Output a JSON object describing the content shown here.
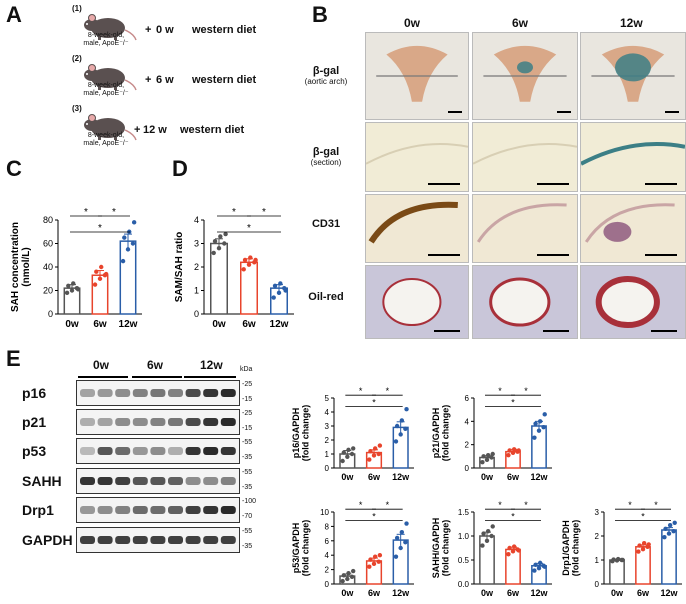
{
  "panels": {
    "A": "A",
    "B": "B",
    "C": "C",
    "D": "D",
    "E": "E"
  },
  "panelA": {
    "groups": [
      {
        "num": "(1)",
        "mouse": [
          "8-week-old,",
          "male, ApoE⁻/⁻"
        ],
        "plus": "+",
        "duration": "0 w",
        "diet": "western diet"
      },
      {
        "num": "(2)",
        "mouse": [
          "8-week-old,",
          "male, ApoE⁻/⁻"
        ],
        "plus": "+",
        "duration": "6 w",
        "diet": "western diet"
      },
      {
        "num": "(3)",
        "mouse": [
          "8-week-old,",
          "male, ApoE⁻/⁻"
        ],
        "plus": "+",
        "duration": "12 w",
        "diet": "western diet"
      }
    ]
  },
  "panelB": {
    "columns": [
      "0w",
      "6w",
      "12w"
    ],
    "rows": [
      {
        "label": "β-gal",
        "sub": "(aortic arch)"
      },
      {
        "label": "β-gal",
        "sub": "(section)"
      },
      {
        "label": "CD31",
        "sub": ""
      },
      {
        "label": "Oil-red",
        "sub": ""
      }
    ],
    "colors": {
      "arch_bg": "#e9e6df",
      "arch_tissue": "#d9a888",
      "stain_blue": "#3c7f86",
      "section_bg": "#f1ecd6",
      "cd31_brown": "#7a4a16",
      "oil_bg": "#c9c6d9",
      "oil_red": "#a8303a"
    }
  },
  "chart_data": [
    {
      "type": "bar",
      "panel": "C",
      "categories": [
        "0w",
        "6w",
        "12w"
      ],
      "values": [
        22,
        33,
        62
      ],
      "errors": [
        3,
        4,
        6
      ],
      "points": [
        [
          18,
          20,
          22,
          24,
          26,
          21
        ],
        [
          25,
          30,
          33,
          36,
          40,
          34
        ],
        [
          45,
          55,
          60,
          65,
          70,
          78
        ]
      ],
      "ylabel": "SAH concentration (nmol/L)",
      "ylabel_lines": [
        "SAH concentration",
        "(nmol/L)"
      ],
      "ylim": [
        0,
        80
      ],
      "yticks": [
        "0",
        "20",
        "40",
        "60",
        "80"
      ],
      "colors": [
        "#555555",
        "#e8442c",
        "#2a5ea8"
      ],
      "significance": [
        "*",
        "*",
        "*"
      ]
    },
    {
      "type": "bar",
      "panel": "D",
      "categories": [
        "0w",
        "6w",
        "12w"
      ],
      "values": [
        3.0,
        2.2,
        1.1
      ],
      "errors": [
        0.2,
        0.15,
        0.15
      ],
      "points": [
        [
          2.6,
          2.8,
          3.0,
          3.1,
          3.3,
          3.4
        ],
        [
          1.9,
          2.1,
          2.2,
          2.3,
          2.4,
          2.3
        ],
        [
          0.7,
          0.9,
          1.1,
          1.2,
          1.3,
          1.0
        ]
      ],
      "ylabel": "SAM/SAH ratio",
      "ylim": [
        0,
        4
      ],
      "yticks": [
        "0",
        "1",
        "2",
        "3",
        "4"
      ],
      "colors": [
        "#555555",
        "#e8442c",
        "#2a5ea8"
      ],
      "significance": [
        "*",
        "*",
        "*"
      ]
    },
    {
      "type": "bar",
      "panel": "E",
      "categories": [
        "0w",
        "6w",
        "12w"
      ],
      "values": [
        1.0,
        1.1,
        2.9
      ],
      "errors": [
        0.25,
        0.2,
        0.4
      ],
      "points": [
        [
          0.5,
          0.8,
          1.0,
          1.1,
          1.3,
          1.4
        ],
        [
          0.6,
          0.9,
          1.0,
          1.2,
          1.4,
          1.6
        ],
        [
          1.9,
          2.4,
          2.8,
          3.0,
          3.4,
          4.2
        ]
      ],
      "ylabel": "p16/GAPDH (fold change)",
      "ylabel_lines": [
        "p16/GAPDH",
        "(fold change)"
      ],
      "ylim": [
        0,
        5
      ],
      "yticks": [
        "0",
        "1",
        "2",
        "3",
        "4",
        "5"
      ],
      "colors": [
        "#555555",
        "#e8442c",
        "#2a5ea8"
      ],
      "significance": [
        "*",
        "*",
        "*"
      ]
    },
    {
      "type": "bar",
      "panel": "E",
      "categories": [
        "0w",
        "6w",
        "12w"
      ],
      "values": [
        0.9,
        1.4,
        3.6
      ],
      "errors": [
        0.15,
        0.2,
        0.4
      ],
      "points": [
        [
          0.5,
          0.7,
          0.9,
          1.0,
          1.1,
          1.2
        ],
        [
          1.1,
          1.3,
          1.4,
          1.5,
          1.6,
          1.5
        ],
        [
          2.6,
          3.2,
          3.5,
          3.8,
          4.0,
          4.6
        ]
      ],
      "ylabel": "p21/GAPDH (fold change)",
      "ylabel_lines": [
        "p21/GAPDH",
        "(fold change)"
      ],
      "ylim": [
        0,
        6
      ],
      "yticks": [
        "0",
        "2",
        "4",
        "6"
      ],
      "colors": [
        "#555555",
        "#e8442c",
        "#2a5ea8"
      ],
      "significance": [
        "*",
        "*",
        "*"
      ]
    },
    {
      "type": "bar",
      "panel": "E",
      "categories": [
        "0w",
        "6w",
        "12w"
      ],
      "values": [
        1.1,
        3.2,
        6.1
      ],
      "errors": [
        0.3,
        0.4,
        0.8
      ],
      "points": [
        [
          0.4,
          0.7,
          1.0,
          1.2,
          1.5,
          1.8
        ],
        [
          2.4,
          2.8,
          3.1,
          3.4,
          3.8,
          4.0
        ],
        [
          3.8,
          5.0,
          5.8,
          6.4,
          7.2,
          8.4
        ]
      ],
      "ylabel": "p53/GAPDH (fold change)",
      "ylabel_lines": [
        "p53/GAPDH",
        "(fold change)"
      ],
      "ylim": [
        0,
        10
      ],
      "yticks": [
        "0",
        "2",
        "4",
        "6",
        "8",
        "10"
      ],
      "colors": [
        "#555555",
        "#e8442c",
        "#2a5ea8"
      ],
      "significance": [
        "*",
        "*",
        "*"
      ]
    },
    {
      "type": "bar",
      "panel": "E",
      "categories": [
        "0w",
        "6w",
        "12w"
      ],
      "values": [
        1.0,
        0.72,
        0.38
      ],
      "errors": [
        0.08,
        0.05,
        0.05
      ],
      "points": [
        [
          0.8,
          0.9,
          1.0,
          1.05,
          1.1,
          1.2
        ],
        [
          0.62,
          0.68,
          0.72,
          0.75,
          0.78,
          0.7
        ],
        [
          0.28,
          0.33,
          0.38,
          0.4,
          0.44,
          0.36
        ]
      ],
      "ylabel": "SAHH/GAPDH (fold change)",
      "ylabel_lines": [
        "SAHH/GAPDH",
        "(fold change)"
      ],
      "ylim": [
        0,
        1.5
      ],
      "yticks": [
        "0.0",
        "0.5",
        "1.0",
        "1.5"
      ],
      "colors": [
        "#555555",
        "#e8442c",
        "#2a5ea8"
      ],
      "significance": [
        "*",
        "*",
        "*"
      ]
    },
    {
      "type": "bar",
      "panel": "E",
      "categories": [
        "0w",
        "6w",
        "12w"
      ],
      "values": [
        1.0,
        1.55,
        2.25
      ],
      "errors": [
        0.03,
        0.08,
        0.1
      ],
      "points": [
        [
          0.95,
          0.98,
          1.0,
          1.02,
          1.04,
          1.0
        ],
        [
          1.35,
          1.45,
          1.55,
          1.6,
          1.7,
          1.65
        ],
        [
          1.95,
          2.1,
          2.2,
          2.3,
          2.45,
          2.55
        ]
      ],
      "ylabel": "Drp1/GAPDH (fold change)",
      "ylabel_lines": [
        "Drp1/GAPDH",
        "(fold change)"
      ],
      "ylim": [
        0,
        3
      ],
      "yticks": [
        "0",
        "1",
        "2",
        "3"
      ],
      "colors": [
        "#555555",
        "#e8442c",
        "#2a5ea8"
      ],
      "significance": [
        "*",
        "*",
        "*"
      ]
    }
  ],
  "panelE_blot": {
    "groups": [
      "0w",
      "6w",
      "12w"
    ],
    "kda_unit": "kDa",
    "bands": [
      {
        "label": "p16",
        "kda": [
          "-25",
          "-15"
        ],
        "intensity": [
          0.35,
          0.4,
          0.45,
          0.5,
          0.55,
          0.5,
          0.75,
          0.85,
          0.9
        ]
      },
      {
        "label": "p21",
        "kda": [
          "-25",
          "-15"
        ],
        "intensity": [
          0.3,
          0.35,
          0.45,
          0.45,
          0.5,
          0.55,
          0.75,
          0.85,
          0.9
        ]
      },
      {
        "label": "p53",
        "kda": [
          "-55",
          "-35"
        ],
        "intensity": [
          0.25,
          0.7,
          0.6,
          0.4,
          0.45,
          0.3,
          0.85,
          0.9,
          0.85
        ]
      },
      {
        "label": "SAHH",
        "kda": [
          "-55",
          "-35"
        ],
        "intensity": [
          0.85,
          0.85,
          0.8,
          0.7,
          0.7,
          0.65,
          0.45,
          0.45,
          0.5
        ]
      },
      {
        "label": "Drp1",
        "kda": [
          "-100",
          "-70"
        ],
        "intensity": [
          0.4,
          0.45,
          0.5,
          0.6,
          0.6,
          0.65,
          0.8,
          0.85,
          0.9
        ]
      },
      {
        "label": "GAPDH",
        "kda": [
          "-55",
          "-35"
        ],
        "intensity": [
          0.8,
          0.8,
          0.8,
          0.8,
          0.8,
          0.8,
          0.8,
          0.8,
          0.8
        ]
      }
    ]
  }
}
